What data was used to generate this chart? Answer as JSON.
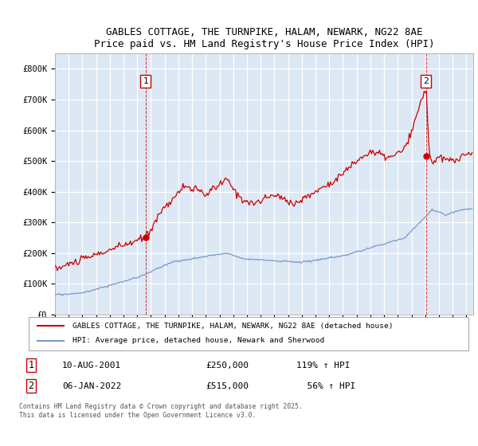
{
  "title_line1": "GABLES COTTAGE, THE TURNPIKE, HALAM, NEWARK, NG22 8AE",
  "title_line2": "Price paid vs. HM Land Registry's House Price Index (HPI)",
  "xlim_start": 1995.0,
  "xlim_end": 2025.5,
  "ylim_min": 0,
  "ylim_max": 850000,
  "red_line_color": "#cc0000",
  "blue_line_color": "#7799cc",
  "background_color": "#dde8f5",
  "grid_color": "#ffffff",
  "legend_label_red": "GABLES COTTAGE, THE TURNPIKE, HALAM, NEWARK, NG22 8AE (detached house)",
  "legend_label_blue": "HPI: Average price, detached house, Newark and Sherwood",
  "ann1_x": 2001.6,
  "ann1_y": 250000,
  "ann2_x": 2022.05,
  "ann2_y": 515000,
  "footnote": "Contains HM Land Registry data © Crown copyright and database right 2025.\nThis data is licensed under the Open Government Licence v3.0.",
  "yticks": [
    0,
    100000,
    200000,
    300000,
    400000,
    500000,
    600000,
    700000,
    800000
  ],
  "ytick_labels": [
    "£0",
    "£100K",
    "£200K",
    "£300K",
    "£400K",
    "£500K",
    "£600K",
    "£700K",
    "£800K"
  ]
}
